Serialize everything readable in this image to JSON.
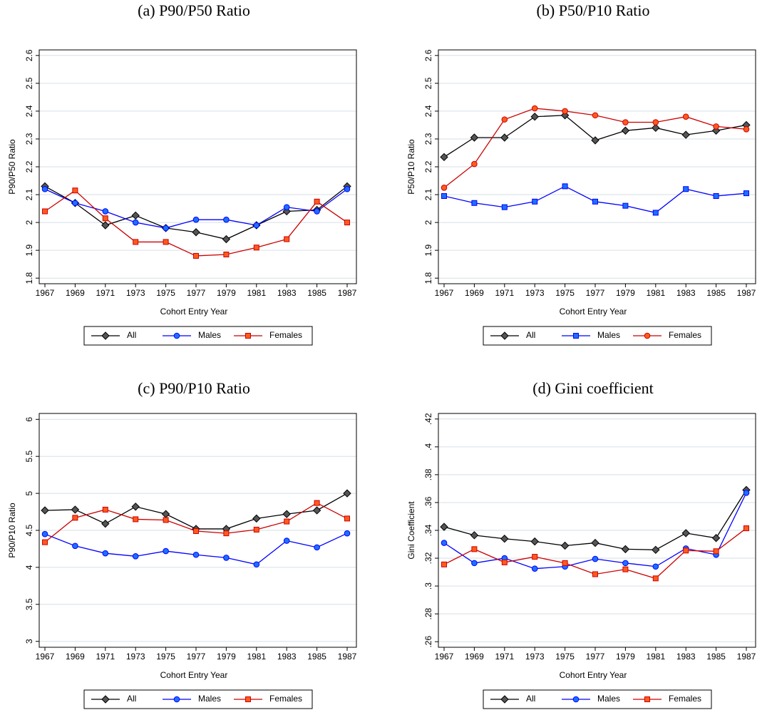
{
  "chart_data": [
    {
      "type": "line",
      "title": "(a) P90/P50 Ratio",
      "x_label": "Cohort Entry Year",
      "y_label": "P90/P50 Ratio",
      "categories": [
        "1967",
        "1969",
        "1971",
        "1973",
        "1975",
        "1977",
        "1979",
        "1981",
        "1983",
        "1985",
        "1987"
      ],
      "series": [
        {
          "name": "All",
          "color": "#000000",
          "marker": "diamond",
          "marker_fill": "#555555",
          "values": [
            2.13,
            2.07,
            1.99,
            2.025,
            1.98,
            1.965,
            1.94,
            1.99,
            2.04,
            2.045,
            2.13
          ]
        },
        {
          "name": "Males",
          "color": "#0000ff",
          "marker": "circle",
          "marker_fill": "#1e6fff",
          "values": [
            2.12,
            2.07,
            2.04,
            2.0,
            1.98,
            2.01,
            2.01,
            1.99,
            2.055,
            2.04,
            2.12
          ]
        },
        {
          "name": "Females",
          "color": "#cc0000",
          "marker": "square",
          "marker_fill": "#ff5a1e",
          "values": [
            2.04,
            2.115,
            2.015,
            1.93,
            1.93,
            1.88,
            1.885,
            1.91,
            1.94,
            2.075,
            2.0
          ]
        }
      ],
      "ylim": [
        1.78,
        2.62
      ],
      "yticks": [
        1.8,
        1.9,
        {
          "value": 2,
          "label": "2"
        },
        2.1,
        2.2,
        2.3,
        2.4,
        2.5,
        2.6
      ],
      "grid": true,
      "legend": "bottom"
    },
    {
      "type": "line",
      "title": "(b) P50/P10 Ratio",
      "x_label": "Cohort Entry Year",
      "y_label": "P50/P10 Ratio",
      "categories": [
        "1967",
        "1969",
        "1971",
        "1973",
        "1975",
        "1977",
        "1979",
        "1981",
        "1983",
        "1985",
        "1987"
      ],
      "series": [
        {
          "name": "All",
          "color": "#000000",
          "marker": "diamond",
          "marker_fill": "#555555",
          "values": [
            2.235,
            2.305,
            2.305,
            2.38,
            2.385,
            2.295,
            2.33,
            2.34,
            2.315,
            2.33,
            2.35
          ]
        },
        {
          "name": "Males",
          "color": "#0000ff",
          "marker": "square",
          "marker_fill": "#1e6fff",
          "values": [
            2.095,
            2.07,
            2.055,
            2.075,
            2.13,
            2.075,
            2.06,
            2.035,
            2.12,
            2.095,
            2.105
          ]
        },
        {
          "name": "Females",
          "color": "#cc0000",
          "marker": "circle",
          "marker_fill": "#ff5a1e",
          "values": [
            2.125,
            2.21,
            2.37,
            2.41,
            2.4,
            2.385,
            2.36,
            2.36,
            2.38,
            2.345,
            2.335
          ]
        }
      ],
      "ylim": [
        1.78,
        2.62
      ],
      "yticks": [
        1.8,
        1.9,
        2,
        2.1,
        2.2,
        2.3,
        2.4,
        2.5,
        2.6
      ],
      "grid": true,
      "legend": "bottom"
    },
    {
      "type": "line",
      "title": "(c) P90/P10 Ratio",
      "x_label": "Cohort Entry Year",
      "y_label": "P90/P10 Ratio",
      "categories": [
        "1967",
        "1969",
        "1971",
        "1973",
        "1975",
        "1977",
        "1979",
        "1981",
        "1983",
        "1985",
        "1987"
      ],
      "series": [
        {
          "name": "All",
          "color": "#000000",
          "marker": "diamond",
          "marker_fill": "#555555",
          "values": [
            4.77,
            4.78,
            4.59,
            4.82,
            4.72,
            4.52,
            4.52,
            4.66,
            4.72,
            4.77,
            5.0
          ]
        },
        {
          "name": "Males",
          "color": "#0000ff",
          "marker": "circle",
          "marker_fill": "#1e6fff",
          "values": [
            4.45,
            4.29,
            4.19,
            4.15,
            4.22,
            4.17,
            4.13,
            4.04,
            4.36,
            4.27,
            4.46
          ]
        },
        {
          "name": "Females",
          "color": "#cc0000",
          "marker": "square",
          "marker_fill": "#ff5a1e",
          "values": [
            4.34,
            4.67,
            4.78,
            4.65,
            4.64,
            4.49,
            4.46,
            4.51,
            4.62,
            4.87,
            4.66
          ]
        }
      ],
      "ylim": [
        2.92,
        6.08
      ],
      "yticks": [
        3,
        3.5,
        4,
        4.5,
        5,
        5.5,
        6
      ],
      "grid": true,
      "legend": "bottom"
    },
    {
      "type": "line",
      "title": "(d) Gini coefficient",
      "x_label": "Cohort Entry Year",
      "y_label": "Gini Coefficient",
      "categories": [
        "1967",
        "1969",
        "1971",
        "1973",
        "1975",
        "1977",
        "1979",
        "1981",
        "1983",
        "1985",
        "1987"
      ],
      "series": [
        {
          "name": "All",
          "color": "#000000",
          "marker": "diamond",
          "marker_fill": "#555555",
          "values": [
            0.3425,
            0.3365,
            0.334,
            0.332,
            0.329,
            0.331,
            0.3265,
            0.326,
            0.338,
            0.3345,
            0.369
          ]
        },
        {
          "name": "Males",
          "color": "#0000ff",
          "marker": "circle",
          "marker_fill": "#1e6fff",
          "values": [
            0.331,
            0.3165,
            0.32,
            0.3125,
            0.314,
            0.3195,
            0.3165,
            0.314,
            0.327,
            0.3225,
            0.367
          ]
        },
        {
          "name": "Females",
          "color": "#cc0000",
          "marker": "square",
          "marker_fill": "#ff5a1e",
          "values": [
            0.3155,
            0.3265,
            0.317,
            0.321,
            0.3165,
            0.3085,
            0.312,
            0.3055,
            0.3255,
            0.325,
            0.3415
          ]
        }
      ],
      "ylim": [
        0.256,
        0.424
      ],
      "yticks": [
        {
          "value": 0.26,
          "label": ".26"
        },
        {
          "value": 0.28,
          "label": ".28"
        },
        {
          "value": 0.3,
          "label": ".3"
        },
        {
          "value": 0.32,
          "label": ".32"
        },
        {
          "value": 0.34,
          "label": ".34"
        },
        {
          "value": 0.36,
          "label": ".36"
        },
        {
          "value": 0.38,
          "label": ".38"
        },
        {
          "value": 0.4,
          "label": ".4"
        },
        {
          "value": 0.42,
          "label": ".42"
        }
      ],
      "grid": true,
      "legend": "bottom"
    }
  ]
}
